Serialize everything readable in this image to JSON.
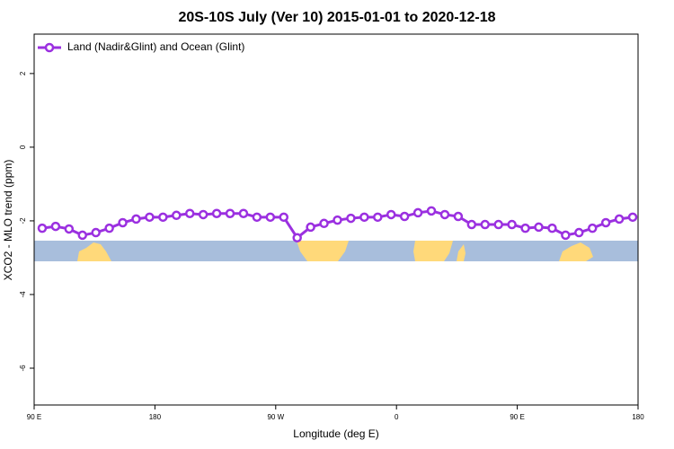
{
  "chart_data": {
    "type": "line",
    "title": "20S-10S July (Ver 10)   2015-01-01 to 2020-12-18",
    "x_label": "Longitude (deg E)",
    "y_label": "XCO2 - MLO trend (ppm)",
    "x": [
      96,
      106,
      116,
      126,
      136,
      146,
      156,
      166,
      176,
      186,
      196,
      206,
      216,
      226,
      236,
      246,
      256,
      266,
      276,
      286,
      296,
      306,
      316,
      326,
      336,
      346,
      356,
      366,
      376,
      386,
      396,
      406,
      416,
      426,
      436,
      446,
      456,
      466,
      476,
      486,
      496,
      506,
      516,
      526,
      536
    ],
    "series": [
      {
        "name": "Land (Nadir&Glint) and Ocean (Glint)",
        "color": "#9b30e0",
        "values": [
          -2.2,
          -2.15,
          -2.22,
          -2.39,
          -2.32,
          -2.2,
          -2.05,
          -1.95,
          -1.9,
          -1.9,
          -1.85,
          -1.8,
          -1.83,
          -1.8,
          -1.8,
          -1.8,
          -1.9,
          -1.9,
          -1.9,
          -2.46,
          -2.17,
          -2.07,
          -1.98,
          -1.93,
          -1.9,
          -1.9,
          -1.83,
          -1.88,
          -1.78,
          -1.73,
          -1.83,
          -1.88,
          -2.1,
          -2.1,
          -2.1,
          -2.1,
          -2.2,
          -2.17,
          -2.2,
          -2.39,
          -2.32,
          -2.2,
          -2.05,
          -1.95,
          -1.9
        ]
      }
    ],
    "xlim": [
      90,
      540
    ],
    "xticks": [
      {
        "value": 90,
        "label": "90 E"
      },
      180,
      {
        "value": 270,
        "label": "90 W"
      },
      {
        "value": 360,
        "label": "0"
      },
      {
        "value": 450,
        "label": "90 E"
      },
      {
        "value": 540,
        "label": "180"
      }
    ],
    "ylim": [
      -7.0,
      3.07
    ],
    "yticks": [
      2,
      0,
      -2,
      -4,
      -6
    ],
    "legend": "top-left"
  }
}
